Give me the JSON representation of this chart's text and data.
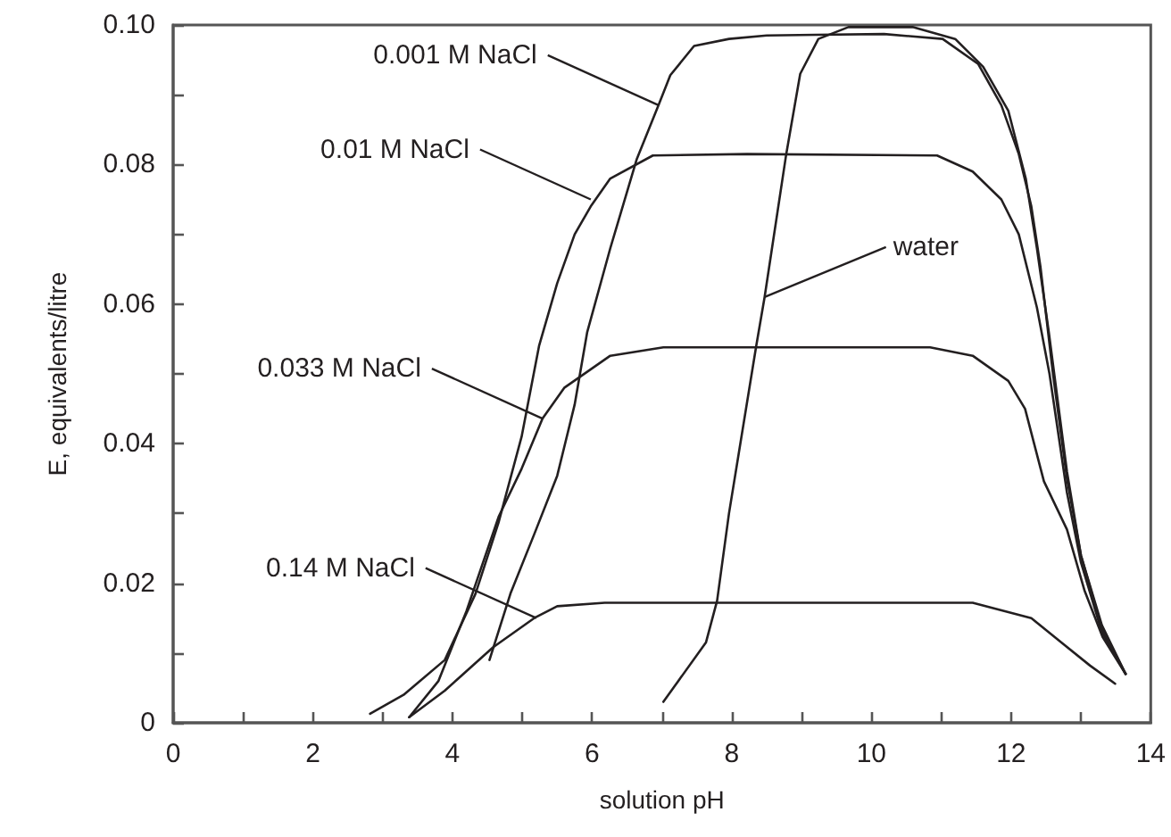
{
  "chart_data": {
    "type": "line",
    "xlabel": "solution pH",
    "ylabel": "E, equivalents/litre",
    "xlim": [
      0,
      14
    ],
    "ylim": [
      0,
      0.1
    ],
    "xticks": [
      0,
      {
        "value": 1,
        "label": null
      },
      2,
      {
        "value": 3,
        "label": null
      },
      4,
      {
        "value": 5,
        "label": null
      },
      6,
      {
        "value": 7,
        "label": null
      },
      8,
      {
        "value": 9,
        "label": null
      },
      10,
      {
        "value": 11,
        "label": null
      },
      12,
      {
        "value": 13,
        "label": null
      },
      14
    ],
    "yticks": [
      0,
      {
        "value": 0.01,
        "label": null
      },
      0.02,
      {
        "value": 0.03,
        "label": null
      },
      0.04,
      {
        "value": 0.05,
        "label": null
      },
      0.06,
      {
        "value": 0.07,
        "label": null
      },
      0.08,
      {
        "value": 0.09,
        "label": null
      },
      {
        "value": 0.1,
        "label": "0.10"
      }
    ],
    "marker": "none",
    "line_style": "solid",
    "series": [
      {
        "color": "#231f20",
        "x": [
          4.53,
          4.83,
          5.17,
          5.5,
          5.75,
          5.93,
          6.26,
          6.64,
          6.95,
          7.12,
          7.46,
          7.96,
          8.5,
          9.2,
          10.18,
          11.02,
          11.53,
          11.86,
          12.11,
          12.29,
          12.42,
          12.6,
          12.8,
          13.0,
          13.3,
          13.64
        ],
        "values": [
          0.009,
          0.0185,
          0.027,
          0.0354,
          0.0456,
          0.056,
          0.068,
          0.0808,
          0.0885,
          0.0928,
          0.097,
          0.098,
          0.0985,
          0.0986,
          0.0987,
          0.098,
          0.0944,
          0.0885,
          0.0815,
          0.074,
          0.0654,
          0.05,
          0.035,
          0.024,
          0.014,
          0.007
        ]
      },
      {
        "color": "#231f20",
        "x": [
          2.82,
          3.3,
          3.89,
          4.33,
          4.66,
          4.99,
          5.24,
          5.5,
          5.75,
          5.98,
          6.26,
          6.87,
          8.22,
          10.94,
          11.45,
          11.86,
          12.11,
          12.37,
          12.55,
          12.8,
          13.0,
          13.3,
          13.64
        ],
        "values": [
          0.0013,
          0.004,
          0.009,
          0.0185,
          0.0287,
          0.041,
          0.054,
          0.063,
          0.07,
          0.074,
          0.078,
          0.0813,
          0.0815,
          0.0813,
          0.079,
          0.075,
          0.07,
          0.0595,
          0.05,
          0.033,
          0.023,
          0.013,
          0.007
        ]
      },
      {
        "color": "#231f20",
        "x": [
          3.38,
          3.8,
          4.2,
          4.66,
          4.99,
          5.29,
          5.6,
          6.26,
          7.02,
          10.84,
          11.45,
          11.96,
          12.2,
          12.47,
          12.8,
          13.05,
          13.31,
          13.64
        ],
        "values": [
          0.0008,
          0.006,
          0.016,
          0.0295,
          0.0364,
          0.0436,
          0.048,
          0.0526,
          0.0538,
          0.0538,
          0.0526,
          0.049,
          0.045,
          0.0346,
          0.0277,
          0.019,
          0.0123,
          0.007
        ]
      },
      {
        "color": "#231f20",
        "x": [
          3.38,
          3.89,
          4.58,
          5.17,
          5.5,
          6.18,
          11.45,
          12.29,
          12.72,
          13.13,
          13.49
        ],
        "values": [
          0.0008,
          0.0046,
          0.0108,
          0.015,
          0.0167,
          0.0172,
          0.0172,
          0.015,
          0.0115,
          0.0082,
          0.0056
        ]
      },
      {
        "color": "#231f20",
        "x": [
          7.02,
          7.63,
          7.79,
          7.96,
          8.35,
          8.47,
          8.78,
          8.98,
          9.24,
          9.67,
          10.59,
          11.2,
          11.6,
          11.96,
          12.21,
          12.37,
          12.54,
          12.8,
          13.0,
          13.3,
          13.64
        ],
        "values": [
          0.003,
          0.0115,
          0.0175,
          0.03,
          0.054,
          0.061,
          0.0815,
          0.093,
          0.098,
          0.0997,
          0.0997,
          0.098,
          0.094,
          0.0877,
          0.078,
          0.068,
          0.056,
          0.036,
          0.024,
          0.0135,
          0.007
        ]
      }
    ],
    "annotations": [
      {
        "text": "0.001 M NaCl",
        "x": 6.95,
        "y": 0.0885
      },
      {
        "text": "0.01 M NaCl",
        "x": 5.98,
        "y": 0.075
      },
      {
        "text": "0.033 M NaCl",
        "x": 5.29,
        "y": 0.0436
      },
      {
        "text": "0.14 M NaCl",
        "x": 5.2,
        "y": 0.015
      },
      {
        "text": "water",
        "x": 8.47,
        "y": 0.061
      }
    ]
  }
}
